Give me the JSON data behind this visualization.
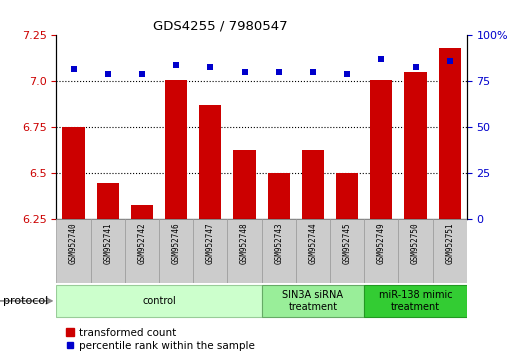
{
  "title": "GDS4255 / 7980547",
  "samples": [
    "GSM952740",
    "GSM952741",
    "GSM952742",
    "GSM952746",
    "GSM952747",
    "GSM952748",
    "GSM952743",
    "GSM952744",
    "GSM952745",
    "GSM952749",
    "GSM952750",
    "GSM952751"
  ],
  "bar_values": [
    6.75,
    6.45,
    6.33,
    7.01,
    6.87,
    6.63,
    6.5,
    6.63,
    6.5,
    7.01,
    7.05,
    7.18
  ],
  "percentile_values": [
    82,
    79,
    79,
    84,
    83,
    80,
    80,
    80,
    79,
    87,
    83,
    86
  ],
  "bar_color": "#cc0000",
  "dot_color": "#0000cc",
  "ylim_left": [
    6.25,
    7.25
  ],
  "ylim_right": [
    0,
    100
  ],
  "yticks_left": [
    6.25,
    6.5,
    6.75,
    7.0,
    7.25
  ],
  "yticks_right": [
    0,
    25,
    50,
    75,
    100
  ],
  "hlines": [
    7.0,
    6.75,
    6.5
  ],
  "groups": [
    {
      "label": "control",
      "start": 0,
      "end": 6,
      "color": "#ccffcc",
      "edge_color": "#99cc99"
    },
    {
      "label": "SIN3A siRNA\ntreatment",
      "start": 6,
      "end": 9,
      "color": "#99ee99",
      "edge_color": "#66aa66"
    },
    {
      "label": "miR-138 mimic\ntreatment",
      "start": 9,
      "end": 12,
      "color": "#33cc33",
      "edge_color": "#229922"
    }
  ],
  "protocol_label": "protocol",
  "legend_bar_label": "transformed count",
  "legend_dot_label": "percentile rank within the sample",
  "bar_width": 0.65,
  "sample_box_color": "#cccccc",
  "sample_box_edge": "#999999"
}
